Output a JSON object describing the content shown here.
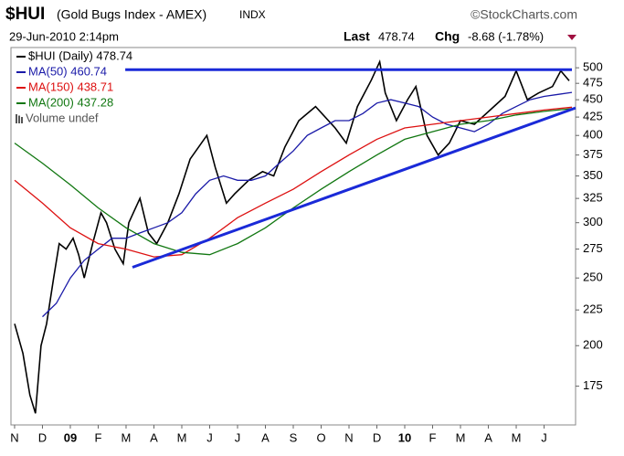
{
  "chart_data": {
    "type": "line",
    "symbol": "$HUI",
    "title": "(Gold Bugs Index - AMEX)",
    "exchange": "INDX",
    "source": "©StockCharts.com",
    "date": "29-Jun-2010 2:14pm",
    "last_label": "Last",
    "last": "478.74",
    "chg_label": "Chg",
    "chg": "-8.68 (-1.78%)",
    "volume_label": "Volume undef",
    "yscale": "log",
    "ylim": [
      154,
      514
    ],
    "yticks": [
      500,
      475,
      450,
      425,
      400,
      375,
      350,
      325,
      300,
      275,
      250,
      225,
      200,
      175
    ],
    "xlim": [
      -0.13,
      20.13
    ],
    "xticks": [
      {
        "value": 0,
        "label": "N"
      },
      {
        "value": 1,
        "label": "D"
      },
      {
        "value": 2,
        "label": "09"
      },
      {
        "value": 3,
        "label": "F"
      },
      {
        "value": 4,
        "label": "M"
      },
      {
        "value": 5,
        "label": "A"
      },
      {
        "value": 6,
        "label": "M"
      },
      {
        "value": 7,
        "label": "J"
      },
      {
        "value": 8,
        "label": "J"
      },
      {
        "value": 9,
        "label": "A"
      },
      {
        "value": 10,
        "label": "S"
      },
      {
        "value": 11,
        "label": "O"
      },
      {
        "value": 12,
        "label": "N"
      },
      {
        "value": 13,
        "label": "D"
      },
      {
        "value": 14,
        "label": "10"
      },
      {
        "value": 15,
        "label": "F"
      },
      {
        "value": 16,
        "label": "M"
      },
      {
        "value": 17,
        "label": "A"
      },
      {
        "value": 18,
        "label": "M"
      },
      {
        "value": 19,
        "label": "J"
      }
    ],
    "series": [
      {
        "name": "$HUI (Daily) 478.74",
        "color": "#000000",
        "x": [
          0.0,
          0.3,
          0.55,
          0.75,
          0.95,
          1.15,
          1.4,
          1.6,
          1.85,
          2.1,
          2.3,
          2.5,
          2.8,
          3.1,
          3.3,
          3.6,
          3.9,
          4.1,
          4.5,
          4.8,
          5.1,
          5.5,
          5.9,
          6.3,
          6.9,
          7.2,
          7.6,
          7.9,
          8.4,
          8.9,
          9.3,
          9.7,
          10.2,
          10.8,
          11.5,
          11.9,
          12.3,
          12.8,
          13.1,
          13.3,
          13.7,
          14.1,
          14.4,
          14.8,
          15.2,
          15.6,
          16.0,
          16.5,
          17.2,
          17.6,
          18.0,
          18.4,
          18.8,
          19.3,
          19.6,
          19.9
        ],
        "values": [
          215,
          195,
          170,
          160,
          200,
          215,
          250,
          280,
          275,
          285,
          270,
          250,
          280,
          310,
          300,
          275,
          262,
          300,
          325,
          290,
          280,
          300,
          330,
          370,
          400,
          360,
          320,
          330,
          345,
          355,
          350,
          385,
          420,
          440,
          410,
          390,
          440,
          480,
          510,
          460,
          420,
          450,
          470,
          400,
          375,
          390,
          420,
          415,
          440,
          455,
          495,
          450,
          460,
          470,
          495,
          479
        ]
      },
      {
        "name": "MA(50) 460.74",
        "color": "#1a1aa8",
        "x": [
          1,
          1.5,
          2,
          2.5,
          3,
          3.5,
          4,
          4.5,
          5,
          5.5,
          6,
          6.5,
          7,
          7.5,
          8,
          8.5,
          9,
          9.5,
          10,
          10.5,
          11,
          11.5,
          12,
          12.5,
          13,
          13.5,
          14,
          14.5,
          15,
          15.5,
          16,
          16.5,
          17,
          17.5,
          18,
          18.5,
          19,
          19.5,
          20
        ],
        "values": [
          220,
          230,
          250,
          265,
          275,
          285,
          285,
          290,
          295,
          300,
          310,
          330,
          345,
          350,
          345,
          345,
          350,
          365,
          380,
          400,
          410,
          420,
          420,
          430,
          445,
          450,
          445,
          440,
          425,
          415,
          410,
          405,
          415,
          430,
          440,
          450,
          455,
          458,
          461
        ]
      },
      {
        "name": "MA(150) 438.71",
        "color": "#dd1111",
        "x": [
          0,
          1,
          2,
          3,
          4,
          5,
          6,
          7,
          8,
          9,
          10,
          11,
          12,
          13,
          14,
          15,
          16,
          17,
          18,
          19,
          20
        ],
        "values": [
          345,
          320,
          295,
          280,
          275,
          268,
          270,
          285,
          305,
          320,
          335,
          355,
          375,
          395,
          410,
          415,
          420,
          425,
          430,
          435,
          439
        ]
      },
      {
        "name": "MA(200) 437.28",
        "color": "#117711",
        "x": [
          0,
          1,
          2,
          3,
          4,
          5,
          6,
          7,
          8,
          9,
          10,
          11,
          12,
          13,
          14,
          15,
          16,
          17,
          18,
          19,
          20
        ],
        "values": [
          390,
          365,
          340,
          315,
          295,
          280,
          272,
          270,
          280,
          295,
          315,
          335,
          355,
          375,
          395,
          405,
          415,
          420,
          428,
          433,
          437
        ]
      }
    ],
    "trendlines": [
      {
        "color": "#1a2ad8",
        "x": [
          3.97,
          20.0
        ],
        "values": [
          497,
          497
        ]
      },
      {
        "color": "#1a2ad8",
        "x": [
          4.23,
          20.13
        ],
        "values": [
          259,
          438
        ]
      }
    ]
  }
}
